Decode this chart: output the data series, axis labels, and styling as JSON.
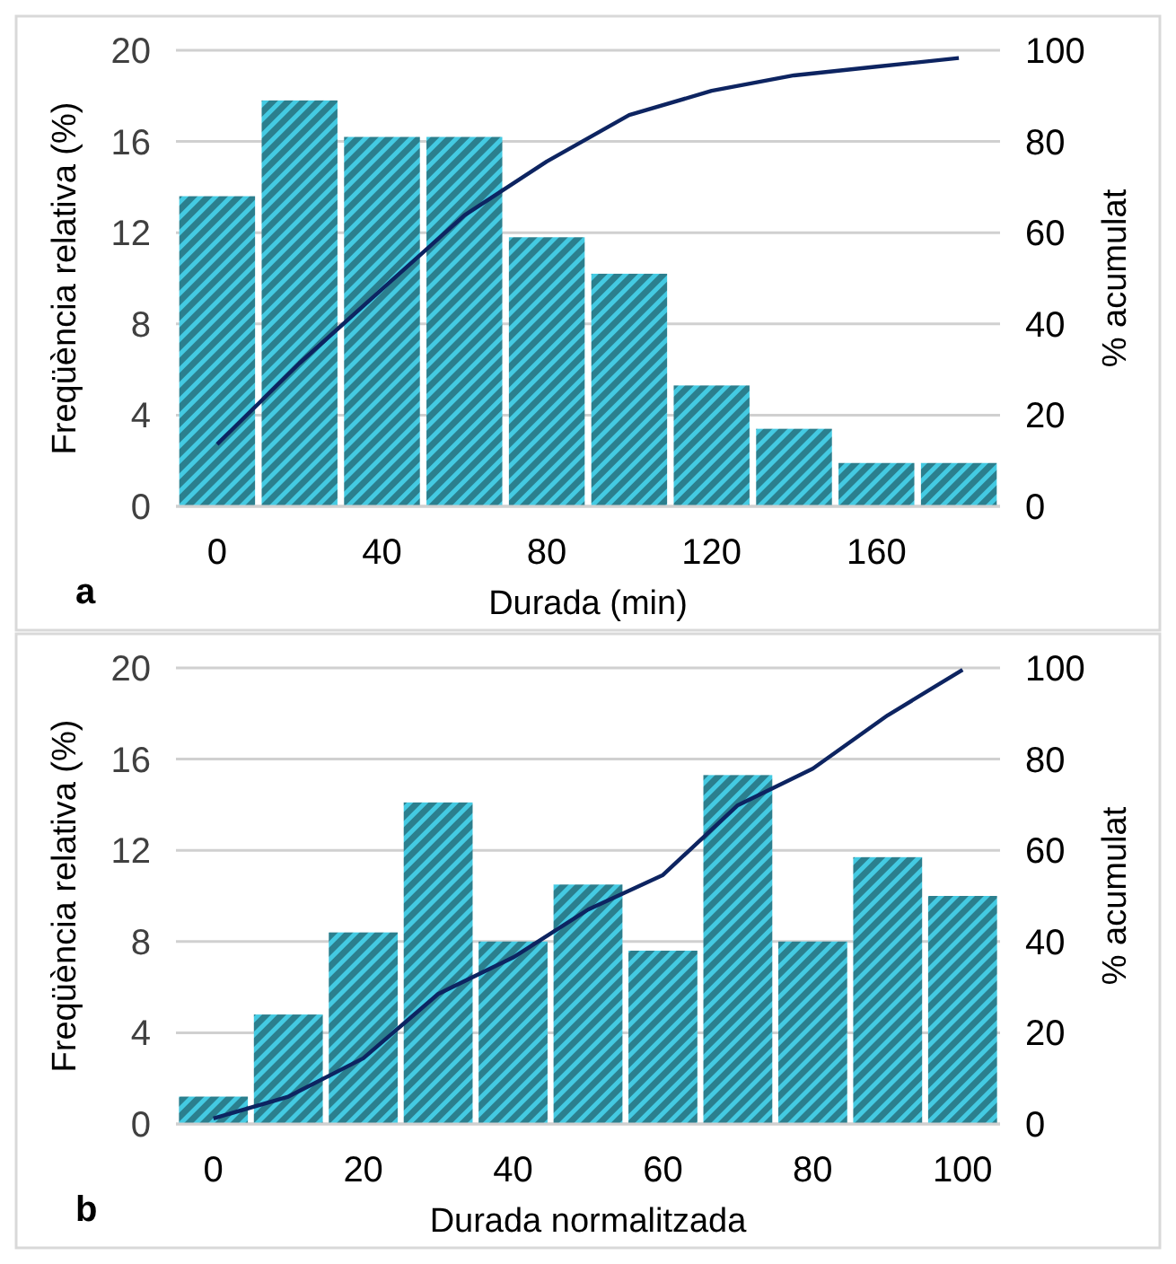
{
  "chart_data": [
    {
      "type": "bar",
      "xlabel": "Durada (min)",
      "ylabel": "Freqüència relativa (%)",
      "y2label": "% acumulat",
      "annotations": [
        "a"
      ],
      "x": [
        0,
        20,
        40,
        60,
        80,
        100,
        120,
        140,
        160,
        180
      ],
      "xlim": [
        -10,
        190
      ],
      "xticks": [
        0,
        40,
        80,
        120,
        160
      ],
      "ylim": [
        0,
        20
      ],
      "yticks": [
        0,
        4,
        8,
        12,
        16,
        20
      ],
      "y2lim": [
        0,
        100
      ],
      "y2ticks": [
        0,
        20,
        40,
        60,
        80,
        100
      ],
      "grid": "y",
      "series": [
        {
          "color": "#2b7f8e",
          "values": [
            13.6,
            17.8,
            16.2,
            16.2,
            11.8,
            10.2,
            5.3,
            3.4,
            1.9,
            1.9
          ]
        },
        {
          "type": "line",
          "axis": "y2",
          "color": "#0d2461",
          "values": [
            13.6,
            31.4,
            47.6,
            63.8,
            75.6,
            85.8,
            91.1,
            94.5,
            96.4,
            98.3
          ]
        }
      ]
    },
    {
      "type": "bar",
      "xlabel": "Durada normalitzada",
      "ylabel": "Freqüència relativa (%)",
      "y2label": "% acumulat",
      "annotations": [
        "b"
      ],
      "x": [
        0,
        10,
        20,
        30,
        40,
        50,
        60,
        70,
        80,
        90,
        100
      ],
      "xlim": [
        -5,
        105
      ],
      "xticks": [
        0,
        20,
        40,
        60,
        80,
        100
      ],
      "ylim": [
        0,
        20
      ],
      "yticks": [
        0,
        4,
        8,
        12,
        16,
        20
      ],
      "y2lim": [
        0,
        100
      ],
      "y2ticks": [
        0,
        20,
        40,
        60,
        80,
        100
      ],
      "grid": "y",
      "series": [
        {
          "color": "#2b7f8e",
          "values": [
            1.2,
            4.8,
            8.4,
            14.1,
            8.0,
            10.5,
            7.6,
            15.3,
            8.0,
            11.7,
            10.0
          ]
        },
        {
          "type": "line",
          "axis": "y2",
          "color": "#0d2461",
          "values": [
            1.2,
            6.0,
            14.4,
            28.5,
            36.5,
            47.0,
            54.6,
            69.9,
            77.9,
            89.6,
            99.6
          ]
        }
      ]
    }
  ]
}
